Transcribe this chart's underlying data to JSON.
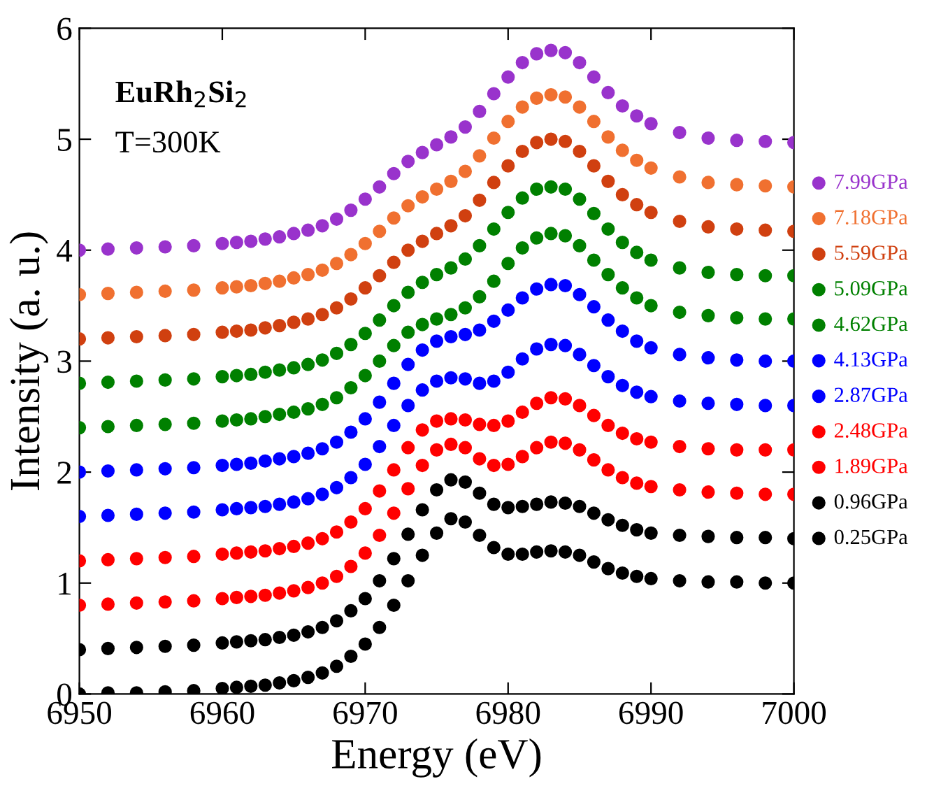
{
  "chart_data": {
    "type": "scatter",
    "xlabel": "Energy (eV)",
    "ylabel": "Intensity (a. u.)",
    "annotations": [
      "EuRh$_{2}$Si$_{2}$",
      "T=300K"
    ],
    "xlim": [
      6950,
      7000
    ],
    "xticks": [
      6950,
      6960,
      6970,
      6980,
      6990,
      7000
    ],
    "ylim": [
      0,
      6
    ],
    "yticks": [
      0,
      1,
      2,
      3,
      4,
      5,
      6
    ],
    "grid": false,
    "legend": "right",
    "marker": "circle",
    "x": [
      6950,
      6952,
      6954,
      6956,
      6958,
      6960,
      6961,
      6962,
      6963,
      6964,
      6965,
      6966,
      6967,
      6968,
      6969,
      6970,
      6971,
      6972,
      6973,
      6974,
      6975,
      6976,
      6977,
      6978,
      6979,
      6980,
      6981,
      6982,
      6983,
      6984,
      6985,
      6986,
      6987,
      6988,
      6989,
      6990,
      6992,
      6994,
      6996,
      6998,
      7000
    ],
    "series": [
      {
        "name": "7.99GPa",
        "color": "#9933cc",
        "values": [
          4.0,
          4.01,
          4.02,
          4.03,
          4.04,
          4.06,
          4.07,
          4.08,
          4.1,
          4.12,
          4.15,
          4.18,
          4.22,
          4.28,
          4.36,
          4.46,
          4.57,
          4.69,
          4.8,
          4.88,
          4.95,
          5.02,
          5.11,
          5.25,
          5.41,
          5.56,
          5.69,
          5.77,
          5.8,
          5.78,
          5.69,
          5.56,
          5.42,
          5.3,
          5.21,
          5.14,
          5.06,
          5.01,
          4.99,
          4.98,
          4.97
        ]
      },
      {
        "name": "7.18GPa",
        "color": "#f07030",
        "values": [
          3.6,
          3.61,
          3.62,
          3.63,
          3.64,
          3.66,
          3.67,
          3.68,
          3.7,
          3.72,
          3.75,
          3.78,
          3.82,
          3.88,
          3.96,
          4.06,
          4.17,
          4.29,
          4.4,
          4.48,
          4.55,
          4.62,
          4.71,
          4.85,
          5.01,
          5.16,
          5.29,
          5.37,
          5.4,
          5.38,
          5.29,
          5.16,
          5.02,
          4.9,
          4.81,
          4.74,
          4.66,
          4.61,
          4.59,
          4.58,
          4.57
        ]
      },
      {
        "name": "5.59GPa",
        "color": "#d04010",
        "values": [
          3.2,
          3.21,
          3.22,
          3.23,
          3.24,
          3.26,
          3.27,
          3.28,
          3.3,
          3.32,
          3.35,
          3.38,
          3.42,
          3.48,
          3.56,
          3.66,
          3.77,
          3.89,
          4.0,
          4.08,
          4.15,
          4.22,
          4.31,
          4.45,
          4.61,
          4.76,
          4.89,
          4.97,
          5.0,
          4.98,
          4.89,
          4.76,
          4.62,
          4.5,
          4.41,
          4.34,
          4.26,
          4.21,
          4.19,
          4.18,
          4.17
        ]
      },
      {
        "name": "5.09GPa",
        "color": "#008000",
        "values": [
          2.8,
          2.81,
          2.82,
          2.83,
          2.84,
          2.86,
          2.87,
          2.88,
          2.9,
          2.92,
          2.94,
          2.97,
          3.01,
          3.07,
          3.15,
          3.25,
          3.37,
          3.5,
          3.62,
          3.71,
          3.78,
          3.84,
          3.92,
          4.04,
          4.19,
          4.34,
          4.47,
          4.55,
          4.57,
          4.55,
          4.46,
          4.33,
          4.19,
          4.07,
          3.98,
          3.91,
          3.84,
          3.8,
          3.78,
          3.77,
          3.77
        ]
      },
      {
        "name": "4.62GPa",
        "color": "#008000",
        "values": [
          2.4,
          2.41,
          2.42,
          2.43,
          2.44,
          2.46,
          2.47,
          2.48,
          2.5,
          2.52,
          2.54,
          2.57,
          2.61,
          2.67,
          2.76,
          2.87,
          3.0,
          3.14,
          3.26,
          3.33,
          3.38,
          3.42,
          3.48,
          3.58,
          3.72,
          3.88,
          4.02,
          4.11,
          4.15,
          4.13,
          4.04,
          3.91,
          3.78,
          3.66,
          3.57,
          3.5,
          3.44,
          3.41,
          3.39,
          3.38,
          3.38
        ]
      },
      {
        "name": "4.13GPa",
        "color": "#0000ff",
        "values": [
          2.0,
          2.01,
          2.02,
          2.03,
          2.04,
          2.06,
          2.07,
          2.08,
          2.1,
          2.12,
          2.14,
          2.17,
          2.21,
          2.27,
          2.36,
          2.48,
          2.63,
          2.8,
          2.97,
          3.1,
          3.18,
          3.22,
          3.24,
          3.28,
          3.36,
          3.46,
          3.57,
          3.65,
          3.69,
          3.68,
          3.6,
          3.49,
          3.37,
          3.27,
          3.18,
          3.12,
          3.06,
          3.03,
          3.01,
          3.0,
          3.0
        ]
      },
      {
        "name": "2.87GPa",
        "color": "#0000ff",
        "values": [
          1.6,
          1.61,
          1.62,
          1.63,
          1.64,
          1.66,
          1.67,
          1.68,
          1.69,
          1.71,
          1.73,
          1.76,
          1.8,
          1.86,
          1.95,
          2.07,
          2.23,
          2.42,
          2.6,
          2.74,
          2.82,
          2.85,
          2.84,
          2.8,
          2.82,
          2.9,
          3.02,
          3.11,
          3.15,
          3.14,
          3.06,
          2.96,
          2.86,
          2.78,
          2.72,
          2.68,
          2.64,
          2.62,
          2.61,
          2.6,
          2.6
        ]
      },
      {
        "name": "2.48GPa",
        "color": "#ff0000",
        "values": [
          1.2,
          1.21,
          1.22,
          1.23,
          1.24,
          1.26,
          1.27,
          1.28,
          1.29,
          1.31,
          1.33,
          1.36,
          1.4,
          1.46,
          1.55,
          1.67,
          1.83,
          2.02,
          2.22,
          2.38,
          2.46,
          2.48,
          2.47,
          2.43,
          2.42,
          2.46,
          2.54,
          2.62,
          2.67,
          2.66,
          2.6,
          2.51,
          2.42,
          2.35,
          2.3,
          2.27,
          2.23,
          2.21,
          2.2,
          2.2,
          2.2
        ]
      },
      {
        "name": "1.89GPa",
        "color": "#ff0000",
        "values": [
          0.8,
          0.81,
          0.82,
          0.83,
          0.84,
          0.86,
          0.87,
          0.88,
          0.89,
          0.91,
          0.93,
          0.96,
          1.0,
          1.06,
          1.15,
          1.27,
          1.43,
          1.63,
          1.85,
          2.06,
          2.2,
          2.25,
          2.22,
          2.12,
          2.06,
          2.07,
          2.14,
          2.22,
          2.27,
          2.26,
          2.2,
          2.11,
          2.02,
          1.95,
          1.9,
          1.87,
          1.84,
          1.82,
          1.81,
          1.8,
          1.8
        ]
      },
      {
        "name": "0.96GPa",
        "color": "#000000",
        "values": [
          0.4,
          0.41,
          0.42,
          0.43,
          0.44,
          0.46,
          0.47,
          0.48,
          0.49,
          0.51,
          0.53,
          0.56,
          0.6,
          0.66,
          0.75,
          0.86,
          1.02,
          1.22,
          1.44,
          1.66,
          1.84,
          1.93,
          1.91,
          1.81,
          1.71,
          1.68,
          1.69,
          1.71,
          1.73,
          1.72,
          1.69,
          1.63,
          1.57,
          1.52,
          1.48,
          1.45,
          1.43,
          1.42,
          1.41,
          1.41,
          1.4
        ]
      },
      {
        "name": "0.25GPa",
        "color": "#000000",
        "values": [
          0.0,
          0.01,
          0.01,
          0.02,
          0.03,
          0.05,
          0.06,
          0.07,
          0.08,
          0.1,
          0.12,
          0.15,
          0.19,
          0.25,
          0.34,
          0.45,
          0.6,
          0.8,
          1.02,
          1.25,
          1.45,
          1.58,
          1.55,
          1.43,
          1.32,
          1.26,
          1.26,
          1.28,
          1.29,
          1.28,
          1.25,
          1.19,
          1.13,
          1.09,
          1.06,
          1.04,
          1.02,
          1.01,
          1.01,
          1.0,
          1.0
        ]
      }
    ]
  }
}
